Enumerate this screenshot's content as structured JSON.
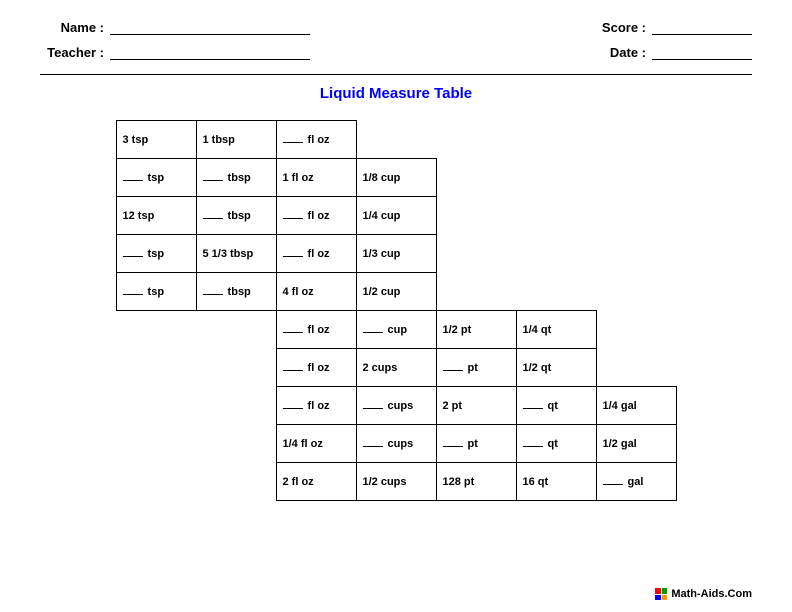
{
  "header": {
    "name_label": "Name :",
    "teacher_label": "Teacher :",
    "score_label": "Score :",
    "date_label": "Date :"
  },
  "title": {
    "text": "Liquid Measure Table",
    "color": "#0000ff"
  },
  "grid": {
    "cols": 7,
    "rows": [
      [
        {
          "t": "3 tsp"
        },
        {
          "t": "1 tbsp"
        },
        {
          "b": true,
          "t": "fl oz"
        },
        null,
        null,
        null,
        null
      ],
      [
        {
          "b": true,
          "t": "tsp"
        },
        {
          "b": true,
          "t": "tbsp"
        },
        {
          "t": "1 fl oz"
        },
        {
          "t": "1/8 cup"
        },
        null,
        null,
        null
      ],
      [
        {
          "t": "12 tsp"
        },
        {
          "b": true,
          "t": "tbsp"
        },
        {
          "b": true,
          "t": "fl oz"
        },
        {
          "t": "1/4 cup"
        },
        null,
        null,
        null
      ],
      [
        {
          "b": true,
          "t": "tsp"
        },
        {
          "t": "5 1/3 tbsp"
        },
        {
          "b": true,
          "t": "fl oz"
        },
        {
          "t": "1/3 cup"
        },
        null,
        null,
        null
      ],
      [
        {
          "b": true,
          "t": "tsp"
        },
        {
          "b": true,
          "t": "tbsp"
        },
        {
          "t": "4 fl oz"
        },
        {
          "t": "1/2 cup"
        },
        null,
        null,
        null
      ],
      [
        null,
        null,
        {
          "b": true,
          "t": "fl oz"
        },
        {
          "b": true,
          "t": "cup"
        },
        {
          "t": "1/2 pt"
        },
        {
          "t": "1/4 qt"
        },
        null
      ],
      [
        null,
        null,
        {
          "b": true,
          "t": "fl oz"
        },
        {
          "t": "2 cups"
        },
        {
          "b": true,
          "t": "pt"
        },
        {
          "t": "1/2 qt"
        },
        null
      ],
      [
        null,
        null,
        {
          "b": true,
          "t": "fl oz"
        },
        {
          "b": true,
          "t": "cups"
        },
        {
          "t": "2 pt"
        },
        {
          "b": true,
          "t": "qt"
        },
        {
          "t": "1/4 gal"
        }
      ],
      [
        null,
        null,
        {
          "t": "1/4 fl oz"
        },
        {
          "b": true,
          "t": "cups"
        },
        {
          "b": true,
          "t": "pt"
        },
        {
          "b": true,
          "t": "qt"
        },
        {
          "t": "1/2 gal"
        }
      ],
      [
        null,
        null,
        {
          "t": "2 fl oz"
        },
        {
          "t": "1/2 cups"
        },
        {
          "t": "128 pt"
        },
        {
          "t": "16 qt"
        },
        {
          "b": true,
          "t": "gal"
        }
      ]
    ]
  },
  "footer": {
    "text": "Math-Aids.Com",
    "logo_colors": [
      "#ff0000",
      "#00a000",
      "#0000ff",
      "#ff9900"
    ]
  },
  "colors": {
    "text": "#000000",
    "background": "#ffffff",
    "border": "#000000"
  }
}
